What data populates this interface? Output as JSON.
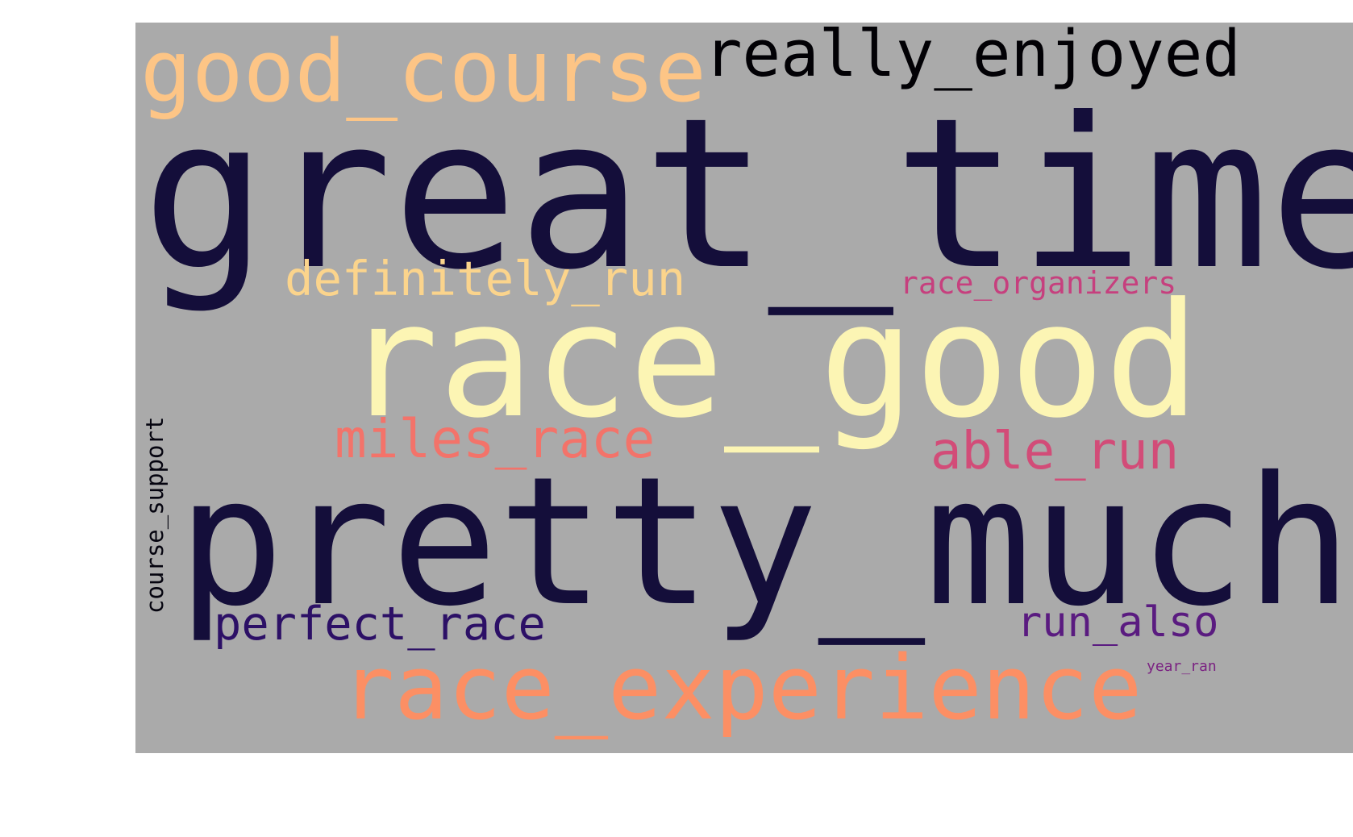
{
  "wordcloud": {
    "background_color": "#aaaaaa",
    "words": [
      {
        "id": "great_time",
        "text": "great_time",
        "color": "#140e3a",
        "orientation": "horizontal"
      },
      {
        "id": "pretty_much",
        "text": "pretty_much",
        "color": "#140e3a",
        "orientation": "horizontal"
      },
      {
        "id": "race_good",
        "text": "race_good",
        "color": "#fcf5b4",
        "orientation": "horizontal"
      },
      {
        "id": "race_experience",
        "text": "race_experience",
        "color": "#fc8f64",
        "orientation": "horizontal"
      },
      {
        "id": "good_course",
        "text": "good_course",
        "color": "#fdc586",
        "orientation": "horizontal"
      },
      {
        "id": "really_enjoyed",
        "text": "really_enjoyed",
        "color": "#020105",
        "orientation": "horizontal"
      },
      {
        "id": "miles_race",
        "text": "miles_race",
        "color": "#f3736a",
        "orientation": "horizontal"
      },
      {
        "id": "able_run",
        "text": "able_run",
        "color": "#d24c78",
        "orientation": "horizontal"
      },
      {
        "id": "definitely_run",
        "text": "definitely_run",
        "color": "#fbd48c",
        "orientation": "horizontal"
      },
      {
        "id": "perfect_race",
        "text": "perfect_race",
        "color": "#2c1066",
        "orientation": "horizontal"
      },
      {
        "id": "run_also",
        "text": "run_also",
        "color": "#5a1b80",
        "orientation": "horizontal"
      },
      {
        "id": "race_organizers",
        "text": "race_organizers",
        "color": "#c6407e",
        "orientation": "horizontal"
      },
      {
        "id": "course_support",
        "text": "course_support",
        "color": "#05040f",
        "orientation": "vertical"
      },
      {
        "id": "year_ran",
        "text": "year_ran",
        "color": "#7b2382",
        "orientation": "horizontal"
      }
    ]
  }
}
